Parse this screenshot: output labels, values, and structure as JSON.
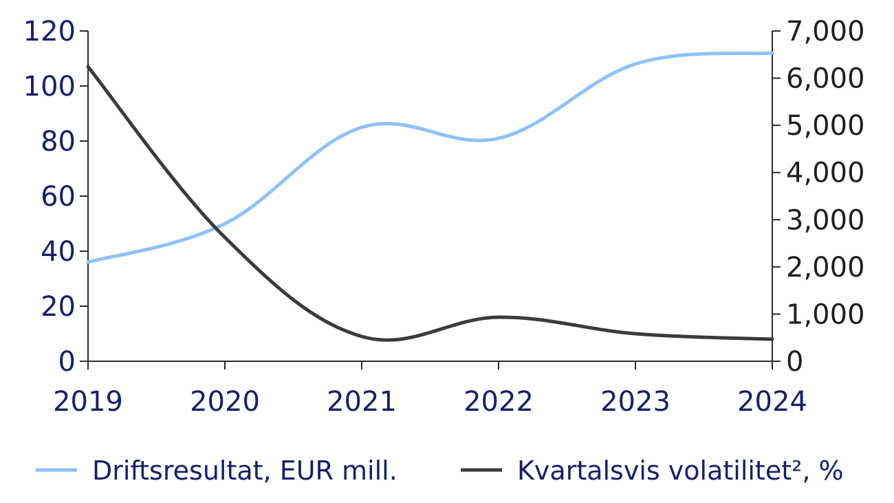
{
  "chart_data": {
    "type": "line",
    "x": [
      "2019",
      "2020",
      "2021",
      "2022",
      "2023",
      "2024"
    ],
    "y_left": {
      "ticks": [
        "0",
        "20",
        "40",
        "60",
        "80",
        "100",
        "120"
      ],
      "lim": [
        0,
        120
      ]
    },
    "y_right": {
      "ticks": [
        "0",
        "1,000",
        "2,000",
        "3,000",
        "4,000",
        "5,000",
        "6,000",
        "7,000"
      ],
      "lim": [
        0,
        7000
      ]
    },
    "series": [
      {
        "name": "Driftsresultat, EUR mill.",
        "axis": "left",
        "color": "#8fc1f7",
        "values": [
          36,
          50,
          85,
          81,
          108,
          112
        ]
      },
      {
        "name": "Kvartalsvis volatilitet², %",
        "axis": "left",
        "color": "#3b3b3b",
        "values": [
          107,
          45,
          9,
          16,
          10,
          8
        ]
      }
    ],
    "grid": false,
    "legend_position": "bottom"
  }
}
